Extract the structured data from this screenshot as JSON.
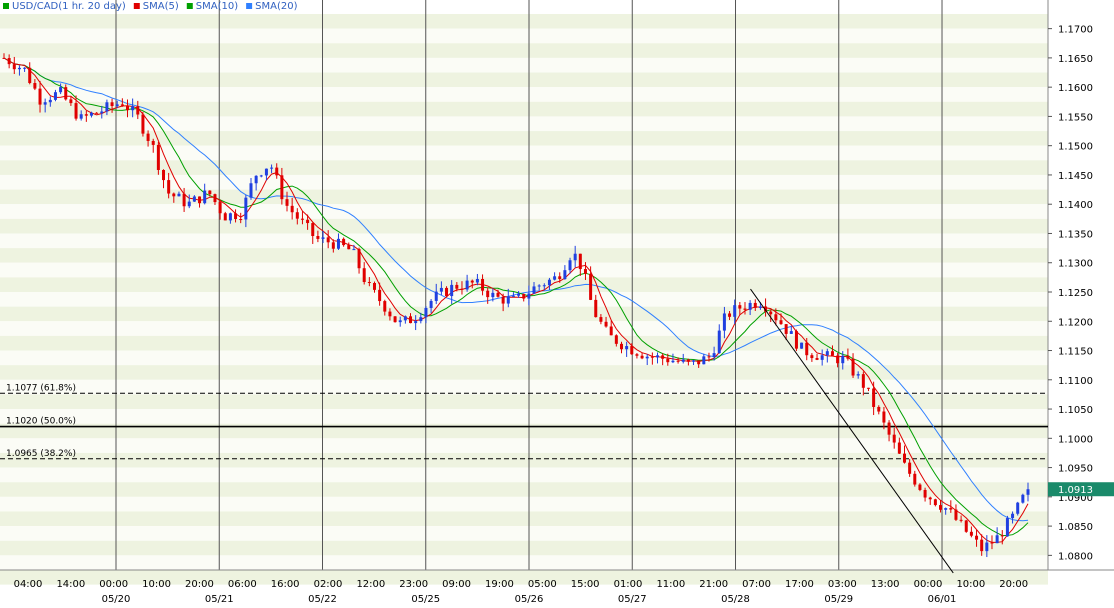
{
  "chart_data": {
    "type": "candlestick",
    "title": "USD/CAD(1 hr. 20 day)",
    "legend": [
      {
        "label": "USD/CAD(1 hr. 20 day)",
        "color": "#00a000"
      },
      {
        "label": "SMA(5)",
        "color": "#e00000"
      },
      {
        "label": "SMA(10)",
        "color": "#00a000"
      },
      {
        "label": "SMA(20)",
        "color": "#3080ff"
      }
    ],
    "ylim": [
      1.0775,
      1.1725
    ],
    "y_ticks": [
      "1.1700",
      "1.1650",
      "1.1600",
      "1.1550",
      "1.1500",
      "1.1450",
      "1.1400",
      "1.1350",
      "1.1300",
      "1.1250",
      "1.1200",
      "1.1150",
      "1.1100",
      "1.1050",
      "1.1000",
      "1.0950",
      "1.0900",
      "1.0850",
      "1.0800"
    ],
    "x_time_labels": [
      "04:00",
      "14:00",
      "00:00",
      "10:00",
      "20:00",
      "06:00",
      "16:00",
      "02:00",
      "12:00",
      "23:00",
      "09:00",
      "19:00",
      "05:00",
      "15:00",
      "01:00",
      "11:00",
      "21:00",
      "07:00",
      "17:00",
      "03:00",
      "13:00",
      "00:00",
      "10:00",
      "20:00"
    ],
    "x_date_labels": [
      "05/20",
      "05/21",
      "05/22",
      "05/25",
      "05/26",
      "05/27",
      "05/28",
      "05/29",
      "06/01"
    ],
    "current_price": {
      "label": "1.0913",
      "value": 1.0913
    },
    "fib_levels": [
      {
        "label": "1.1077 (61.8%)",
        "value": 1.1077
      },
      {
        "label": "1.1020 (50.0%)",
        "value": 1.102
      },
      {
        "label": "1.0965 (38.2%)",
        "value": 1.0965
      }
    ],
    "trendline": {
      "start": [
        0.729,
        1.1255
      ],
      "end": [
        0.927,
        1.077
      ]
    },
    "price_path": [
      [
        0.0,
        1.165
      ],
      [
        0.02,
        1.163
      ],
      [
        0.035,
        1.158
      ],
      [
        0.055,
        1.159
      ],
      [
        0.075,
        1.1545
      ],
      [
        0.095,
        1.156
      ],
      [
        0.115,
        1.1575
      ],
      [
        0.13,
        1.155
      ],
      [
        0.145,
        1.15
      ],
      [
        0.16,
        1.142
      ],
      [
        0.18,
        1.14
      ],
      [
        0.2,
        1.142
      ],
      [
        0.215,
        1.138
      ],
      [
        0.232,
        1.1385
      ],
      [
        0.245,
        1.145
      ],
      [
        0.26,
        1.147
      ],
      [
        0.275,
        1.14
      ],
      [
        0.29,
        1.137
      ],
      [
        0.305,
        1.134
      ],
      [
        0.32,
        1.1335
      ],
      [
        0.34,
        1.132
      ],
      [
        0.355,
        1.126
      ],
      [
        0.37,
        1.123
      ],
      [
        0.385,
        1.1195
      ],
      [
        0.4,
        1.1205
      ],
      [
        0.42,
        1.124
      ],
      [
        0.44,
        1.126
      ],
      [
        0.46,
        1.1265
      ],
      [
        0.48,
        1.124
      ],
      [
        0.5,
        1.1235
      ],
      [
        0.52,
        1.126
      ],
      [
        0.54,
        1.1275
      ],
      [
        0.555,
        1.132
      ],
      [
        0.565,
        1.129
      ],
      [
        0.575,
        1.122
      ],
      [
        0.59,
        1.1175
      ],
      [
        0.61,
        1.1155
      ],
      [
        0.63,
        1.114
      ],
      [
        0.65,
        1.1135
      ],
      [
        0.67,
        1.1125
      ],
      [
        0.69,
        1.114
      ],
      [
        0.705,
        1.121
      ],
      [
        0.72,
        1.1225
      ],
      [
        0.74,
        1.1235
      ],
      [
        0.76,
        1.1195
      ],
      [
        0.78,
        1.115
      ],
      [
        0.8,
        1.114
      ],
      [
        0.82,
        1.1135
      ],
      [
        0.84,
        1.109
      ],
      [
        0.86,
        1.102
      ],
      [
        0.88,
        1.095
      ],
      [
        0.9,
        1.0905
      ],
      [
        0.92,
        1.088
      ],
      [
        0.94,
        1.084
      ],
      [
        0.955,
        1.081
      ],
      [
        0.97,
        1.083
      ],
      [
        0.985,
        1.0865
      ],
      [
        1.0,
        1.0913
      ]
    ]
  }
}
